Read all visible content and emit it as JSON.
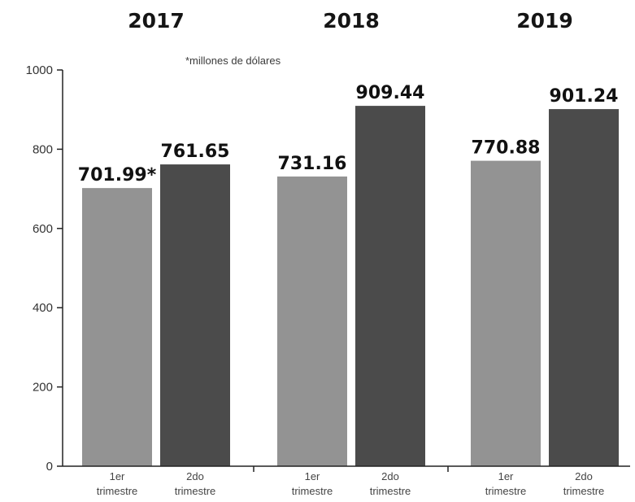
{
  "chart_data": {
    "type": "bar",
    "note": "*millones de dólares",
    "ylim": [
      0,
      1000
    ],
    "yticks": [
      0,
      200,
      400,
      600,
      800,
      1000
    ],
    "grid": false,
    "colors": {
      "1er trimestre": "#939393",
      "2do trimestre": "#4b4b4b"
    },
    "groups": [
      {
        "label": "2017",
        "bars": [
          {
            "category": "1er trimestre",
            "value": 701.99,
            "label": "701.99*"
          },
          {
            "category": "2do trimestre",
            "value": 761.65,
            "label": "761.65"
          }
        ]
      },
      {
        "label": "2018",
        "bars": [
          {
            "category": "1er trimestre",
            "value": 731.16,
            "label": "731.16"
          },
          {
            "category": "2do trimestre",
            "value": 909.44,
            "label": "909.44"
          }
        ]
      },
      {
        "label": "2019",
        "bars": [
          {
            "category": "1er trimestre",
            "value": 770.88,
            "label": "770.88"
          },
          {
            "category": "2do trimestre",
            "value": 901.24,
            "label": "901.24"
          }
        ]
      }
    ],
    "category_labels": [
      {
        "key": "1er trimestre",
        "line1": "1er",
        "line2": "trimestre"
      },
      {
        "key": "2do trimestre",
        "line1": "2do",
        "line2": "trimestre"
      }
    ]
  }
}
